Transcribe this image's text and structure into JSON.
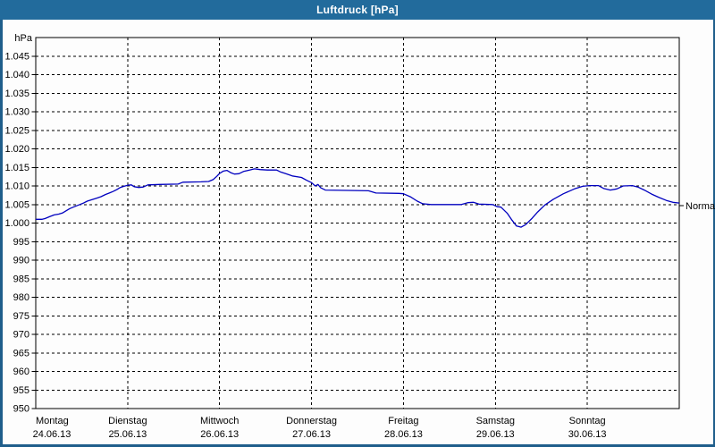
{
  "window": {
    "title": "Luftdruck [hPa]"
  },
  "colors": {
    "titlebar_bg": "#226b9c",
    "titlebar_text": "#ffffff",
    "frame_border": "#1f5e8b",
    "chart_bg": "#fdfdfd",
    "series_line": "#0000bf",
    "grid": "#000000",
    "text": "#000000"
  },
  "chart_data": {
    "type": "line",
    "title": "Luftdruck [hPa]",
    "unit_label": "hPa",
    "ylim": [
      950,
      1050
    ],
    "grid": "dashed",
    "y_ticks": [
      {
        "value": 1045,
        "label": "1.045"
      },
      {
        "value": 1040,
        "label": "1.040"
      },
      {
        "value": 1035,
        "label": "1.035"
      },
      {
        "value": 1030,
        "label": "1.030"
      },
      {
        "value": 1025,
        "label": "1.025"
      },
      {
        "value": 1020,
        "label": "1.020"
      },
      {
        "value": 1015,
        "label": "1.015"
      },
      {
        "value": 1010,
        "label": "1.010"
      },
      {
        "value": 1005,
        "label": "1.005"
      },
      {
        "value": 1000,
        "label": "1.000"
      },
      {
        "value": 995,
        "label": "995"
      },
      {
        "value": 990,
        "label": "990"
      },
      {
        "value": 985,
        "label": "985"
      },
      {
        "value": 980,
        "label": "980"
      },
      {
        "value": 975,
        "label": "975"
      },
      {
        "value": 970,
        "label": "970"
      },
      {
        "value": 965,
        "label": "965"
      },
      {
        "value": 960,
        "label": "960"
      },
      {
        "value": 955,
        "label": "955"
      },
      {
        "value": 950,
        "label": "950"
      }
    ],
    "x_days": [
      {
        "name": "Montag",
        "date": "24.06.13"
      },
      {
        "name": "Dienstag",
        "date": "25.06.13"
      },
      {
        "name": "Mittwoch",
        "date": "26.06.13"
      },
      {
        "name": "Donnerstag",
        "date": "27.06.13"
      },
      {
        "name": "Freitag",
        "date": "28.06.13"
      },
      {
        "name": "Samstag",
        "date": "29.06.13"
      },
      {
        "name": "Sonntag",
        "date": "30.06.13"
      }
    ],
    "annotations": [
      {
        "label": "Normal",
        "value": 1004.7,
        "side": "right"
      }
    ],
    "series": [
      {
        "name": "Luftdruck",
        "color": "#0000bf",
        "points": [
          [
            0.0,
            1001.0
          ],
          [
            0.07,
            1001.0
          ],
          [
            0.1,
            1001.2
          ],
          [
            0.15,
            1001.7
          ],
          [
            0.2,
            1002.2
          ],
          [
            0.25,
            1002.4
          ],
          [
            0.29,
            1002.7
          ],
          [
            0.33,
            1003.3
          ],
          [
            0.37,
            1003.9
          ],
          [
            0.42,
            1004.4
          ],
          [
            0.47,
            1004.9
          ],
          [
            0.52,
            1005.4
          ],
          [
            0.56,
            1005.9
          ],
          [
            0.61,
            1006.3
          ],
          [
            0.66,
            1006.7
          ],
          [
            0.71,
            1007.1
          ],
          [
            0.76,
            1007.7
          ],
          [
            0.81,
            1008.2
          ],
          [
            0.84,
            1008.5
          ],
          [
            0.88,
            1009.0
          ],
          [
            0.92,
            1009.6
          ],
          [
            0.96,
            1009.9
          ],
          [
            1.0,
            1010.2
          ],
          [
            1.04,
            1010.3
          ],
          [
            1.07,
            1009.8
          ],
          [
            1.12,
            1009.6
          ],
          [
            1.17,
            1009.7
          ],
          [
            1.22,
            1010.3
          ],
          [
            1.35,
            1010.4
          ],
          [
            1.55,
            1010.5
          ],
          [
            1.6,
            1011.0
          ],
          [
            1.8,
            1011.1
          ],
          [
            1.88,
            1011.2
          ],
          [
            1.93,
            1011.7
          ],
          [
            1.97,
            1012.6
          ],
          [
            2.0,
            1013.4
          ],
          [
            2.04,
            1014.0
          ],
          [
            2.08,
            1014.2
          ],
          [
            2.12,
            1013.6
          ],
          [
            2.16,
            1013.2
          ],
          [
            2.21,
            1013.3
          ],
          [
            2.26,
            1013.9
          ],
          [
            2.31,
            1014.2
          ],
          [
            2.38,
            1014.6
          ],
          [
            2.44,
            1014.4
          ],
          [
            2.52,
            1014.3
          ],
          [
            2.62,
            1014.3
          ],
          [
            2.66,
            1013.8
          ],
          [
            2.72,
            1013.3
          ],
          [
            2.79,
            1012.7
          ],
          [
            2.89,
            1012.3
          ],
          [
            2.95,
            1011.5
          ],
          [
            3.0,
            1010.9
          ],
          [
            3.04,
            1010.0
          ],
          [
            3.07,
            1010.4
          ],
          [
            3.1,
            1009.5
          ],
          [
            3.15,
            1008.9
          ],
          [
            3.4,
            1008.8
          ],
          [
            3.62,
            1008.7
          ],
          [
            3.7,
            1008.1
          ],
          [
            3.95,
            1008.0
          ],
          [
            4.0,
            1007.9
          ],
          [
            4.08,
            1007.0
          ],
          [
            4.15,
            1005.9
          ],
          [
            4.21,
            1005.2
          ],
          [
            4.3,
            1005.0
          ],
          [
            4.63,
            1005.0
          ],
          [
            4.7,
            1005.5
          ],
          [
            4.76,
            1005.6
          ],
          [
            4.82,
            1005.1
          ],
          [
            4.97,
            1005.0
          ],
          [
            5.02,
            1004.4
          ],
          [
            5.06,
            1004.3
          ],
          [
            5.13,
            1002.6
          ],
          [
            5.18,
            1000.8
          ],
          [
            5.23,
            999.2
          ],
          [
            5.28,
            998.9
          ],
          [
            5.33,
            999.6
          ],
          [
            5.4,
            1001.3
          ],
          [
            5.46,
            1003.0
          ],
          [
            5.54,
            1004.9
          ],
          [
            5.63,
            1006.4
          ],
          [
            5.74,
            1007.9
          ],
          [
            5.86,
            1009.2
          ],
          [
            5.95,
            1009.9
          ],
          [
            6.02,
            1010.1
          ],
          [
            6.12,
            1010.1
          ],
          [
            6.18,
            1009.3
          ],
          [
            6.25,
            1008.9
          ],
          [
            6.32,
            1009.2
          ],
          [
            6.39,
            1010.0
          ],
          [
            6.49,
            1010.1
          ],
          [
            6.55,
            1009.7
          ],
          [
            6.62,
            1008.9
          ],
          [
            6.7,
            1007.8
          ],
          [
            6.78,
            1006.9
          ],
          [
            6.86,
            1006.1
          ],
          [
            6.93,
            1005.6
          ],
          [
            7.0,
            1005.4
          ]
        ]
      }
    ]
  }
}
